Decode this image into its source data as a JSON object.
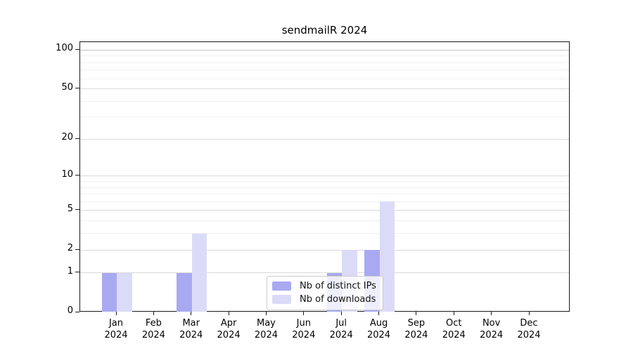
{
  "figure": {
    "background": "#ffffff",
    "frame_color": "#1a1a1a",
    "major_grid_color": "#d9d9d9",
    "minor_grid_color": "#efefef",
    "top_grid_color": "#c6c6c6"
  },
  "chart_data": {
    "type": "bar",
    "title": "sendmailR 2024",
    "categories": [
      "Jan",
      "Feb",
      "Mar",
      "Apr",
      "May",
      "Jun",
      "Jul",
      "Aug",
      "Sep",
      "Oct",
      "Nov",
      "Dec"
    ],
    "category_year": "2024",
    "series": [
      {
        "name": "Nb of distinct IPs",
        "color": "#a9a9f2",
        "values": [
          1,
          0,
          1,
          0,
          0,
          0,
          1,
          2,
          0,
          0,
          0,
          0
        ]
      },
      {
        "name": "Nb of downloads",
        "color": "#dbdbf8",
        "values": [
          1,
          0,
          3,
          0,
          0,
          0,
          2,
          6,
          0,
          0,
          0,
          0
        ]
      }
    ],
    "xlabel": "",
    "ylabel": "",
    "yscale": "log1p",
    "ylim": [
      0,
      115
    ],
    "yticks": [
      0,
      1,
      2,
      5,
      10,
      20,
      50,
      100
    ],
    "minor_gridlines": [
      3,
      4,
      6,
      7,
      8,
      9,
      30,
      40,
      60,
      70,
      80,
      90
    ],
    "grid": "on",
    "legend_position": "lower center"
  }
}
